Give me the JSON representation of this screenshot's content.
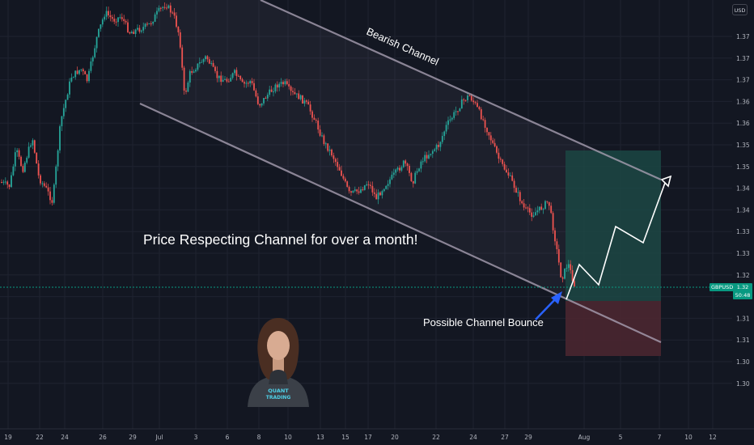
{
  "chart_data": {
    "type": "candlestick",
    "symbol": "GBPUSD",
    "currency": "USD",
    "last_price": "1.32",
    "countdown": "50:48",
    "y_ticks": [
      "1.37",
      "1.37",
      "1.37",
      "1.36",
      "1.36",
      "1.35",
      "1.35",
      "1.34",
      "1.34",
      "1.33",
      "1.33",
      "1.32",
      "1.32",
      "1.31",
      "1.31",
      "1.30",
      "1.30"
    ],
    "x_ticks": [
      "19",
      "22",
      "24",
      "26",
      "29",
      "Jul",
      "3",
      "6",
      "8",
      "10",
      "13",
      "15",
      "17",
      "20",
      "22",
      "24",
      "27",
      "29",
      "Aug",
      "5",
      "7",
      "10",
      "12"
    ],
    "annotations": {
      "channel_label": "Bearish Channel",
      "headline": "Price Respecting Channel for over a month!",
      "bounce_label": "Possible Channel Bounce"
    },
    "avatar_caption": [
      "QUANT",
      "TRADING"
    ],
    "colors": {
      "up": "#26a69a",
      "down": "#ef5350",
      "background": "#131722",
      "channel": "#9c94a6",
      "target_zone": "#1b4743",
      "stop_zone": "#4a2630",
      "price_tag": "#089981"
    }
  }
}
